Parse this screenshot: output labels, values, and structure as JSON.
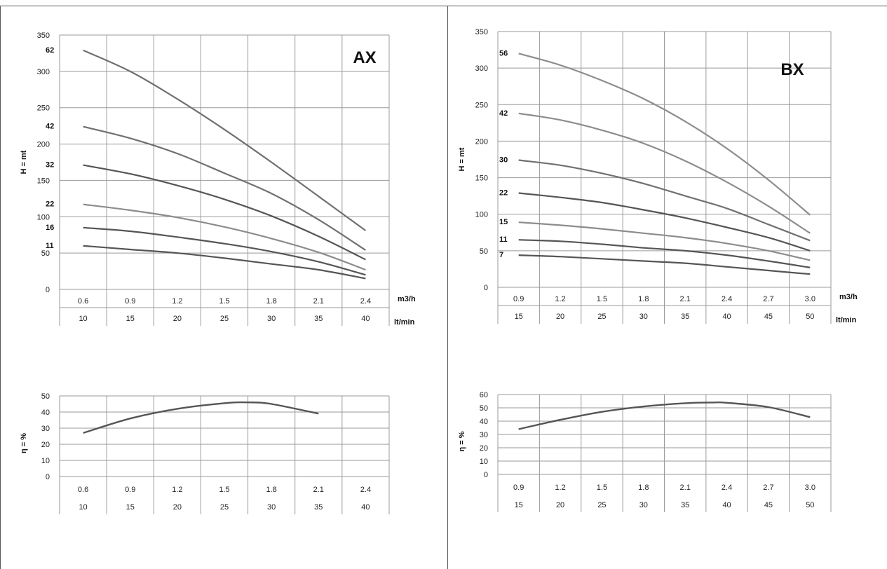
{
  "colors": {
    "dark": "#555555",
    "mid": "#707070",
    "light": "#8c8c8c",
    "grid": "#9a9a9a"
  },
  "panels": [
    {
      "title": "AX",
      "head": {
        "ylabel": "H = mt",
        "y_ticks": [
          "0",
          "50",
          "100",
          "150",
          "200",
          "250",
          "300",
          "350"
        ],
        "ylim": [
          0,
          350
        ],
        "x_ticks_m3h": [
          "0.6",
          "0.9",
          "1.2",
          "1.5",
          "1.8",
          "2.1",
          "2.4"
        ],
        "x_ticks_ltmin": [
          "10",
          "15",
          "20",
          "25",
          "30",
          "35",
          "40"
        ],
        "unit_m3h": "m3/h",
        "unit_ltmin": "lt/min",
        "curves": [
          {
            "label": "62",
            "tone": "mid",
            "q": [
              0.6,
              0.9,
              1.2,
              1.5,
              1.8,
              2.1,
              2.4
            ],
            "h": [
              329,
              300,
              262,
              220,
              175,
              128,
              81
            ]
          },
          {
            "label": "42",
            "tone": "mid",
            "q": [
              0.6,
              0.9,
              1.2,
              1.5,
              1.8,
              2.1,
              2.4
            ],
            "h": [
              224,
              208,
              187,
              160,
              132,
              96,
              54
            ]
          },
          {
            "label": "32",
            "tone": "dark",
            "q": [
              0.6,
              0.9,
              1.2,
              1.5,
              1.8,
              2.1,
              2.4
            ],
            "h": [
              171,
              159,
              143,
              124,
              101,
              73,
              41
            ]
          },
          {
            "label": "22",
            "tone": "light",
            "q": [
              0.6,
              0.9,
              1.2,
              1.5,
              1.8,
              2.1,
              2.4
            ],
            "h": [
              117,
              109,
              99,
              86,
              70,
              51,
              27
            ]
          },
          {
            "label": "16",
            "tone": "dark",
            "q": [
              0.6,
              0.9,
              1.2,
              1.5,
              1.8,
              2.1,
              2.4
            ],
            "h": [
              85,
              80,
              72,
              63,
              52,
              38,
              20
            ]
          },
          {
            "label": "11",
            "tone": "dark",
            "q": [
              0.6,
              0.9,
              1.2,
              1.5,
              1.8,
              2.1,
              2.4
            ],
            "h": [
              60,
              55,
              50,
              43,
              35,
              27,
              15
            ]
          }
        ]
      },
      "eff": {
        "ylabel": "η = %",
        "y_ticks": [
          "0",
          "10",
          "20",
          "30",
          "40",
          "50"
        ],
        "ylim": [
          0,
          50
        ],
        "x_ticks_m3h": [
          "0.6",
          "0.9",
          "1.2",
          "1.5",
          "1.8",
          "2.1",
          "2.4"
        ],
        "x_ticks_ltmin": [
          "10",
          "15",
          "20",
          "25",
          "30",
          "35",
          "40"
        ],
        "curve": {
          "q": [
            0.6,
            0.9,
            1.2,
            1.5,
            1.65,
            1.8,
            2.1
          ],
          "e": [
            27,
            36,
            42,
            45.5,
            46,
            45,
            39
          ]
        }
      }
    },
    {
      "title": "BX",
      "head": {
        "ylabel": "H = mt",
        "y_ticks": [
          "0",
          "50",
          "100",
          "150",
          "200",
          "250",
          "300",
          "350"
        ],
        "ylim": [
          0,
          350
        ],
        "x_ticks_m3h": [
          "0.9",
          "1.2",
          "1.5",
          "1.8",
          "2.1",
          "2.4",
          "2.7",
          "3.0"
        ],
        "x_ticks_ltmin": [
          "15",
          "20",
          "25",
          "30",
          "35",
          "40",
          "45",
          "50"
        ],
        "unit_m3h": "m3/h",
        "unit_ltmin": "lt/min",
        "curves": [
          {
            "label": "56",
            "tone": "light",
            "q": [
              0.9,
              1.2,
              1.5,
              1.8,
              2.1,
              2.4,
              2.7,
              3.0
            ],
            "h": [
              320,
              304,
              283,
              258,
              227,
              190,
              147,
              99
            ]
          },
          {
            "label": "42",
            "tone": "light",
            "q": [
              0.9,
              1.2,
              1.5,
              1.8,
              2.1,
              2.4,
              2.7,
              3.0
            ],
            "h": [
              238,
              229,
              215,
              197,
              173,
              144,
              111,
              74
            ]
          },
          {
            "label": "30",
            "tone": "mid",
            "q": [
              0.9,
              1.2,
              1.5,
              1.8,
              2.1,
              2.4,
              2.7,
              3.0
            ],
            "h": [
              174,
              167,
              156,
              142,
              125,
              108,
              86,
              64
            ]
          },
          {
            "label": "22",
            "tone": "dark",
            "q": [
              0.9,
              1.2,
              1.5,
              1.8,
              2.1,
              2.4,
              2.7,
              3.0
            ],
            "h": [
              129,
              123,
              116,
              106,
              95,
              82,
              68,
              50
            ]
          },
          {
            "label": "15",
            "tone": "light",
            "q": [
              0.9,
              1.2,
              1.5,
              1.8,
              2.1,
              2.4,
              2.7,
              3.0
            ],
            "h": [
              89,
              85,
              80,
              74,
              68,
              60,
              50,
              37
            ]
          },
          {
            "label": "11",
            "tone": "dark",
            "q": [
              0.9,
              1.2,
              1.5,
              1.8,
              2.1,
              2.4,
              2.7,
              3.0
            ],
            "h": [
              65,
              63,
              59,
              54,
              50,
              44,
              36,
              27
            ]
          },
          {
            "label": "7",
            "tone": "dark",
            "q": [
              0.9,
              1.2,
              1.5,
              1.8,
              2.1,
              2.4,
              2.7,
              3.0
            ],
            "h": [
              44,
              42,
              39,
              36,
              33,
              28,
              23,
              18
            ]
          }
        ]
      },
      "eff": {
        "ylabel": "η = %",
        "y_ticks": [
          "0",
          "10",
          "20",
          "30",
          "40",
          "50",
          "60"
        ],
        "ylim": [
          0,
          60
        ],
        "x_ticks_m3h": [
          "0.9",
          "1.2",
          "1.5",
          "1.8",
          "2.1",
          "2.4",
          "2.7",
          "3.0"
        ],
        "x_ticks_ltmin": [
          "15",
          "20",
          "25",
          "30",
          "35",
          "40",
          "45",
          "50"
        ],
        "curve": {
          "q": [
            0.9,
            1.2,
            1.5,
            1.8,
            2.1,
            2.3,
            2.4,
            2.7,
            3.0
          ],
          "e": [
            34,
            41,
            47,
            51,
            53.5,
            54,
            53.8,
            50.5,
            43
          ]
        }
      }
    }
  ],
  "chart_data": [
    {
      "type": "line",
      "title": "AX",
      "xlabel": "m3/h",
      "ylabel": "H = mt",
      "x": [
        0.6,
        0.9,
        1.2,
        1.5,
        1.8,
        2.1,
        2.4
      ],
      "x_secondary": [
        10,
        15,
        20,
        25,
        30,
        35,
        40
      ],
      "x_secondary_label": "lt/min",
      "ylim": [
        0,
        350
      ],
      "grid": true,
      "series": [
        {
          "name": "62",
          "values": [
            329,
            300,
            262,
            220,
            175,
            128,
            81
          ]
        },
        {
          "name": "42",
          "values": [
            224,
            208,
            187,
            160,
            132,
            96,
            54
          ]
        },
        {
          "name": "32",
          "values": [
            171,
            159,
            143,
            124,
            101,
            73,
            41
          ]
        },
        {
          "name": "22",
          "values": [
            117,
            109,
            99,
            86,
            70,
            51,
            27
          ]
        },
        {
          "name": "16",
          "values": [
            85,
            80,
            72,
            63,
            52,
            38,
            20
          ]
        },
        {
          "name": "11",
          "values": [
            60,
            55,
            50,
            43,
            35,
            27,
            15
          ]
        }
      ]
    },
    {
      "type": "line",
      "ylabel": "η = %",
      "x": [
        0.6,
        0.9,
        1.2,
        1.5,
        1.65,
        1.8,
        2.1
      ],
      "ylim": [
        0,
        50
      ],
      "grid": true,
      "series": [
        {
          "values": [
            27,
            36,
            42,
            45.5,
            46,
            45,
            39
          ]
        }
      ]
    },
    {
      "type": "line",
      "title": "BX",
      "xlabel": "m3/h",
      "ylabel": "H = mt",
      "x": [
        0.9,
        1.2,
        1.5,
        1.8,
        2.1,
        2.4,
        2.7,
        3.0
      ],
      "x_secondary": [
        15,
        20,
        25,
        30,
        35,
        40,
        45,
        50
      ],
      "x_secondary_label": "lt/min",
      "ylim": [
        0,
        350
      ],
      "grid": true,
      "series": [
        {
          "name": "56",
          "values": [
            320,
            304,
            283,
            258,
            227,
            190,
            147,
            99
          ]
        },
        {
          "name": "42",
          "values": [
            238,
            229,
            215,
            197,
            173,
            144,
            111,
            74
          ]
        },
        {
          "name": "30",
          "values": [
            174,
            167,
            156,
            142,
            125,
            108,
            86,
            64
          ]
        },
        {
          "name": "22",
          "values": [
            129,
            123,
            116,
            106,
            95,
            82,
            68,
            50
          ]
        },
        {
          "name": "15",
          "values": [
            89,
            85,
            80,
            74,
            68,
            60,
            50,
            37
          ]
        },
        {
          "name": "11",
          "values": [
            65,
            63,
            59,
            54,
            50,
            44,
            36,
            27
          ]
        },
        {
          "name": "7",
          "values": [
            44,
            42,
            39,
            36,
            33,
            28,
            23,
            18
          ]
        }
      ]
    },
    {
      "type": "line",
      "ylabel": "η = %",
      "x": [
        0.9,
        1.2,
        1.5,
        1.8,
        2.1,
        2.3,
        2.4,
        2.7,
        3.0
      ],
      "ylim": [
        0,
        60
      ],
      "grid": true,
      "series": [
        {
          "values": [
            34,
            41,
            47,
            51,
            53.5,
            54,
            53.8,
            50.5,
            43
          ]
        }
      ]
    }
  ]
}
